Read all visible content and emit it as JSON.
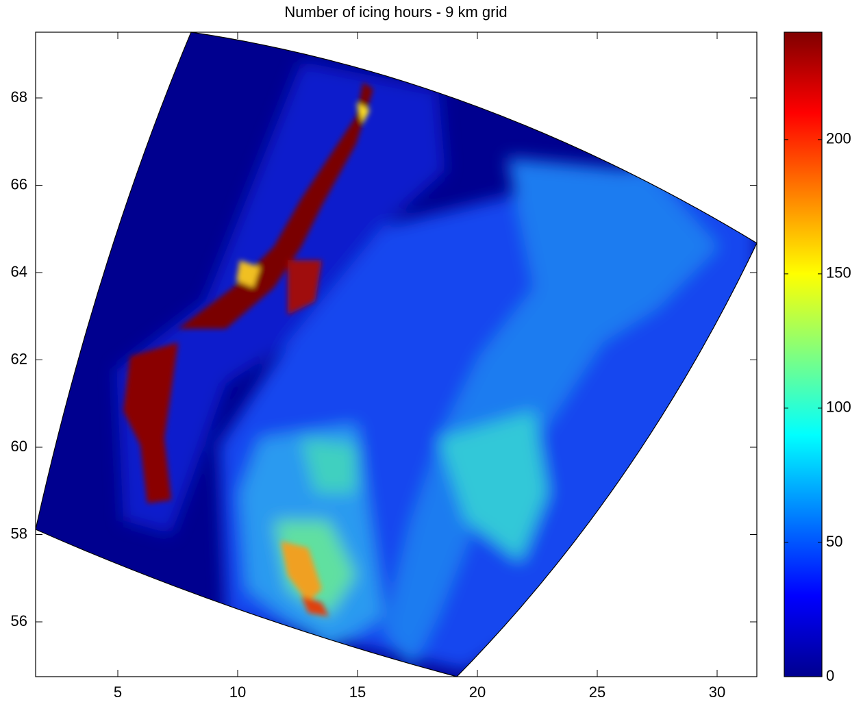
{
  "chart_data": {
    "type": "contour-map",
    "title": "Number of icing hours - 9 km grid",
    "xlim": [
      1.571,
      31.657
    ],
    "xticks": [
      5,
      10,
      15,
      20,
      25,
      30
    ],
    "ylim": [
      54.745,
      69.506
    ],
    "yticks": [
      56,
      58,
      60,
      62,
      64,
      66,
      68
    ],
    "colorbar": {
      "lim": [
        0,
        240
      ],
      "ticks": [
        0,
        50,
        100,
        150,
        200
      ],
      "colormap": "jet"
    }
  }
}
